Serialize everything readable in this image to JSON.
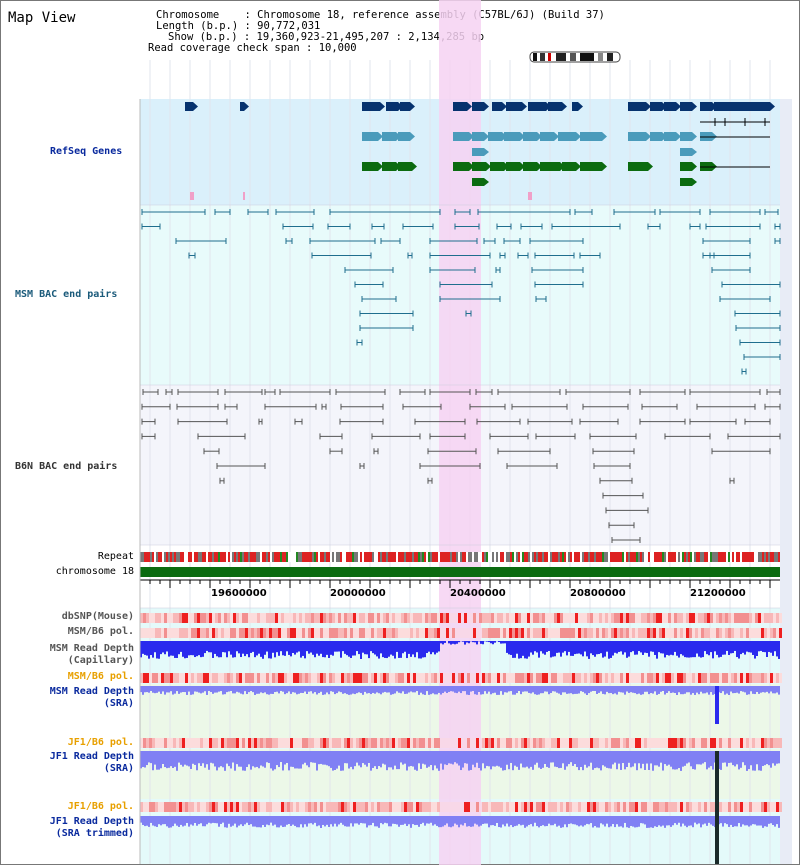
{
  "window": {
    "title": "Map View"
  },
  "info": {
    "chromosome_key": "Chromosome",
    "chromosome_val": "Chromosome 18, reference assembly (C57BL/6J) (Build 37)",
    "length_key": "Length (b.p.)",
    "length_val": "90,772,031",
    "show_key": "Show (b.p.)",
    "show_val": "19,360,923-21,495,207 : 2,134,285 bp",
    "span_key": "Read coverage check span",
    "span_val": "10,000"
  },
  "tracks": {
    "refseq": "RefSeq Genes",
    "msm_bac": "MSM BAC end pairs",
    "b6n_bac": "B6N BAC end pairs",
    "repeat": "Repeat",
    "chromosome": "chromosome 18",
    "dbsnp": "dbSNP(Mouse)",
    "msm_b6_pol": "MSM/B6 pol.",
    "msm_depth_cap_1": "MSM Read Depth",
    "msm_depth_cap_2": "(Capillary)",
    "msm_b6_pol_2": "MSM/B6 pol.",
    "msm_depth_sra_1": "MSM Read Depth",
    "msm_depth_sra_2": "(SRA)",
    "jf1_b6_pol": "JF1/B6 pol.",
    "jf1_depth_sra_1": "JF1 Read Depth",
    "jf1_depth_sra_2": "(SRA)",
    "jf1_b6_pol_2": "JF1/B6 pol.",
    "jf1_depth_trim_1": "JF1 Read Depth",
    "jf1_depth_trim_2": "(SRA trimmed)"
  },
  "axis": {
    "ticks": [
      "19600000",
      "20000000",
      "20400000",
      "20800000",
      "21200000"
    ]
  },
  "colors": {
    "refseq_bg": "#daf0fb",
    "msm_bg": "#e8fbfb",
    "b6n_bg": "#f4f5fb",
    "highlight": "#f6d2f2",
    "gene_dark": "#06326e",
    "gene_mid": "#4a9bbb",
    "gene_green": "#0b6b10",
    "msm_line": "#1f6e8e",
    "b6n_line": "#555555",
    "depth_blue": "#2a2aee",
    "depth_light": "#8080f4",
    "pol_red": "#f07a7a",
    "pol_orange": "#e8a000",
    "label_blue": "#0a2a9e",
    "label_teal": "#1a5a7a"
  }
}
